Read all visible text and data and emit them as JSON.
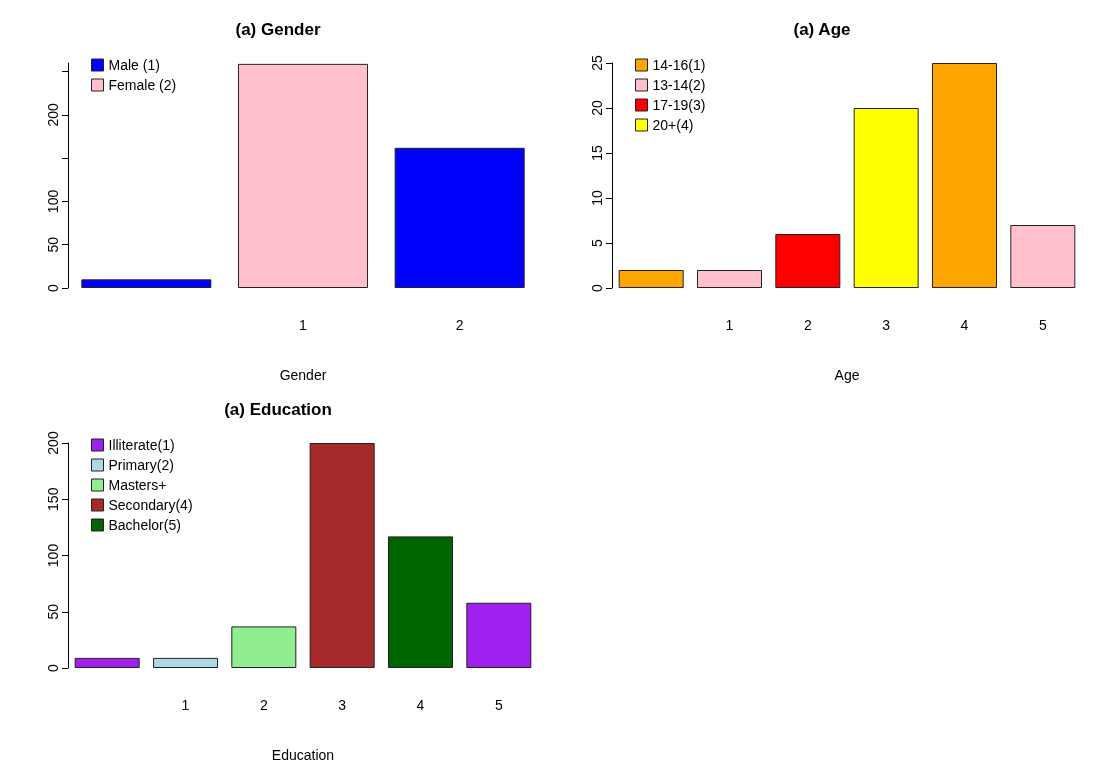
{
  "chart_data": [
    {
      "type": "bar",
      "title": "(a) Gender",
      "xlabel": "Gender",
      "categories": [
        null,
        "1",
        "2"
      ],
      "stacked": true,
      "legend": "top left",
      "grid": false,
      "ylim": [
        0,
        260
      ],
      "yticks": [
        0,
        50,
        100,
        {
          "value": 150,
          "label": null
        },
        200,
        {
          "value": 250,
          "label": null
        }
      ],
      "series": [
        {
          "name": "Male (1)",
          "color": "#0000ff",
          "values": [
            10,
            null,
            162
          ]
        },
        {
          "name": "Female (2)",
          "color": "#ffc0cb",
          "values": [
            null,
            259,
            null
          ]
        }
      ]
    },
    {
      "type": "bar",
      "title": "(a) Age",
      "xlabel": "Age",
      "categories": [
        null,
        "1",
        "2",
        "3",
        "4",
        "5"
      ],
      "stacked": true,
      "legend": "top left",
      "grid": false,
      "ylim": [
        0,
        25
      ],
      "yticks": [
        0,
        5,
        10,
        15,
        20,
        25
      ],
      "series": [
        {
          "name": "14-16(1)",
          "color": "#ffa500",
          "values": [
            2,
            null,
            null,
            null,
            25,
            null
          ]
        },
        {
          "name": "13-14(2)",
          "color": "#ffc0cb",
          "values": [
            null,
            2,
            null,
            null,
            null,
            7
          ]
        },
        {
          "name": "17-19(3)",
          "color": "#ff0000",
          "values": [
            null,
            null,
            6,
            null,
            null,
            null
          ]
        },
        {
          "name": "20+(4)",
          "color": "#ffff00",
          "values": [
            null,
            null,
            null,
            20,
            null,
            null
          ]
        }
      ]
    },
    {
      "type": "bar",
      "title": "(a) Education",
      "xlabel": "Education",
      "categories": [
        null,
        "1",
        "2",
        "3",
        "4",
        "5"
      ],
      "stacked": true,
      "legend": "top left",
      "grid": false,
      "ylim": [
        0,
        200
      ],
      "yticks": [
        0,
        50,
        100,
        150,
        200
      ],
      "series": [
        {
          "name": "Illiterate(1)",
          "color": "#a020f0",
          "values": [
            9,
            null,
            null,
            null,
            null,
            58
          ]
        },
        {
          "name": "Primary(2)",
          "color": "#add8e6",
          "values": [
            null,
            9,
            null,
            null,
            null,
            null
          ]
        },
        {
          "name": "Masters+",
          "color": "#90ee90",
          "values": [
            null,
            null,
            37,
            null,
            null,
            null
          ]
        },
        {
          "name": "Secondary(4)",
          "color": "#a52a2a",
          "values": [
            null,
            null,
            null,
            200,
            null,
            null
          ]
        },
        {
          "name": "Bachelor(5)",
          "color": "#006400",
          "values": [
            null,
            null,
            null,
            null,
            117,
            null
          ]
        }
      ]
    }
  ]
}
